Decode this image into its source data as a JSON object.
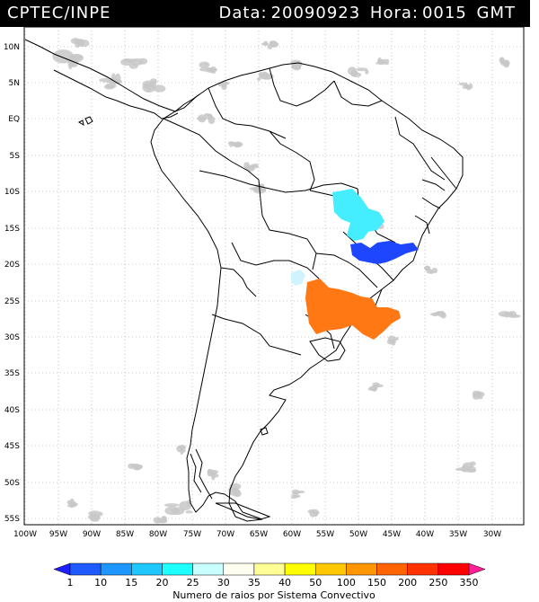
{
  "header": {
    "source": "CPTEC/INPE",
    "date_label": "Data:",
    "date_value": "20090923",
    "hour_label": "Hora:",
    "hour_value": "0015",
    "tz": "GMT"
  },
  "axes": {
    "lat_labels": [
      "10N",
      "5N",
      "EQ",
      "5S",
      "10S",
      "15S",
      "20S",
      "25S",
      "30S",
      "35S",
      "40S",
      "45S",
      "50S",
      "55S"
    ],
    "lon_labels": [
      "100W",
      "95W",
      "90W",
      "85W",
      "80W",
      "75W",
      "70W",
      "65W",
      "60W",
      "55W",
      "50W",
      "45W",
      "40W",
      "35W",
      "30W"
    ]
  },
  "colorbar": {
    "ticks": [
      "1",
      "10",
      "15",
      "20",
      "25",
      "30",
      "35",
      "40",
      "50",
      "100",
      "150",
      "200",
      "250",
      "350"
    ],
    "colors": [
      "#1e1eff",
      "#1e5aff",
      "#1e96ff",
      "#1ec8ff",
      "#1effff",
      "#c8ffff",
      "#fffff0",
      "#ffff96",
      "#ffff00",
      "#ffc800",
      "#ff9600",
      "#ff6400",
      "#ff3200",
      "#ff0000",
      "#ff1e96"
    ],
    "title": "Numero de raios por Sistema Convectivo"
  },
  "map_colors": {
    "cloud": "#c8c8c8",
    "cyan_cluster": "#44eeff",
    "blue_cluster": "#1e46ff",
    "light_cluster": "#d0f4ff",
    "orange_cluster": "#ff7814"
  }
}
